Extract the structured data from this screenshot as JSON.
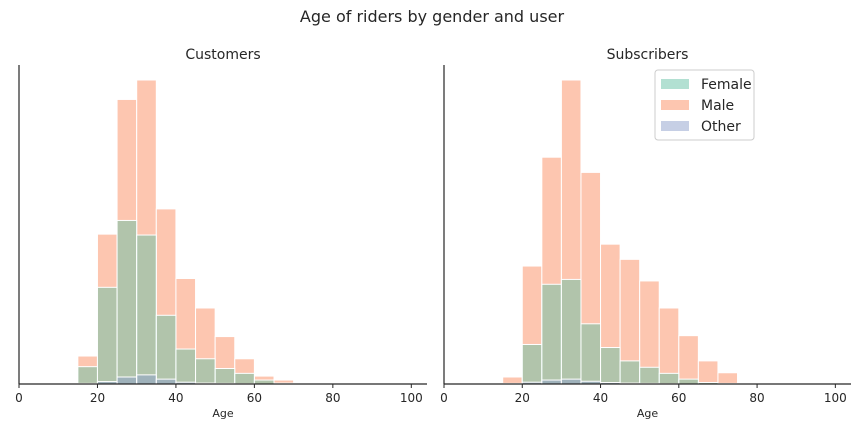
{
  "suptitle": "Age of riders by gender and user",
  "colors": {
    "female": "#66c2a5",
    "male": "#fc8d62",
    "other": "#8da0cb",
    "axis": "#262626",
    "bar_edge": "#ffffff"
  },
  "legend": {
    "placement": "upper right of second panel",
    "entries": [
      "Female",
      "Male",
      "Other"
    ]
  },
  "chart_data": [
    {
      "type": "histogram",
      "title": "Customers",
      "xlabel": "Age",
      "ylabel": "",
      "xlim": [
        0,
        104
      ],
      "ylim": [
        0,
        100
      ],
      "xticks": [
        0,
        20,
        40,
        60,
        80,
        100
      ],
      "y_tick_labels_shown": false,
      "bin_width": 5,
      "bins": [
        15,
        20,
        25,
        30,
        35,
        40,
        45,
        50,
        55,
        60,
        65
      ],
      "series": [
        {
          "name": "Female",
          "values": [
            5.7,
            31.8,
            53.8,
            49.0,
            22.6,
            11.5,
            8.3,
            5.1,
            3.5,
            1.3,
            0.3
          ]
        },
        {
          "name": "Male",
          "values": [
            9.2,
            49.3,
            93.6,
            100.0,
            57.6,
            34.7,
            25.0,
            15.6,
            8.3,
            2.6,
            1.3
          ]
        },
        {
          "name": "Other",
          "values": [
            0.2,
            0.8,
            2.3,
            3.0,
            1.6,
            0.6,
            0.3,
            0.2,
            0.1,
            0.0,
            0.0
          ]
        }
      ]
    },
    {
      "type": "histogram",
      "title": "Subscribers",
      "xlabel": "Age",
      "ylabel": "",
      "xlim": [
        0,
        104
      ],
      "ylim": [
        0,
        100
      ],
      "xticks": [
        0,
        20,
        40,
        60,
        80,
        100
      ],
      "y_tick_labels_shown": false,
      "bin_width": 5,
      "bins": [
        15,
        20,
        25,
        30,
        35,
        40,
        45,
        50,
        55,
        60,
        65,
        70
      ],
      "series": [
        {
          "name": "Female",
          "values": [
            0.2,
            13.0,
            32.8,
            34.4,
            19.8,
            12.0,
            7.6,
            5.5,
            3.5,
            1.6,
            0.5,
            0.2
          ]
        },
        {
          "name": "Male",
          "values": [
            2.3,
            38.8,
            74.6,
            100.0,
            69.6,
            46.0,
            41.0,
            33.9,
            25.0,
            15.9,
            7.6,
            3.7
          ]
        },
        {
          "name": "Other",
          "values": [
            0.0,
            0.6,
            1.3,
            1.6,
            0.9,
            0.5,
            0.3,
            0.2,
            0.1,
            0.0,
            0.0,
            0.0
          ]
        }
      ]
    }
  ]
}
